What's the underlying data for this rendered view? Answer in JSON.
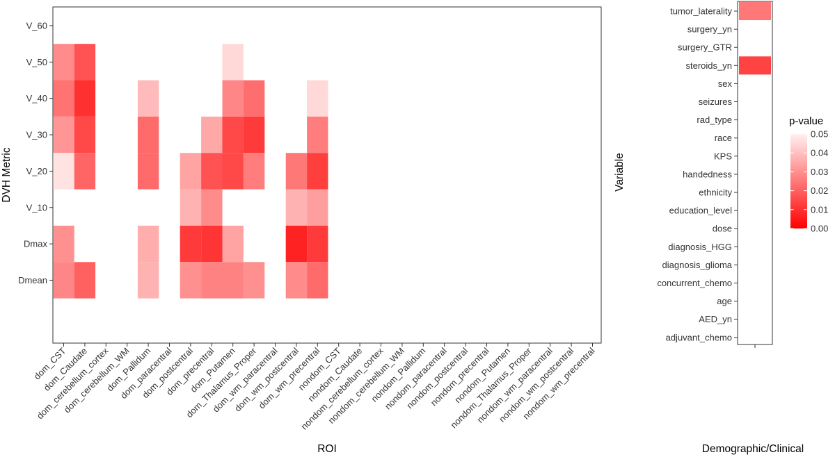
{
  "chart_data": [
    {
      "type": "heatmap",
      "xlabel": "ROI",
      "ylabel": "DVH Metric",
      "x_categories": [
        "dom_CST",
        "dom_Caudate",
        "dom_cerebellum_cortex",
        "dom_cerebellum_WM",
        "dom_Pallidum",
        "dom_paracentral",
        "dom_postcentral",
        "dom_precentral",
        "dom_Putamen",
        "dom_Thalamus_Proper",
        "dom_wm_paracentral",
        "dom_wm_postcentral",
        "dom_wm_precentral",
        "nondom_CST",
        "nondom_Caudate",
        "nondom_cerebellum_cortex",
        "nondom_cerebellum_WM",
        "nondom_Pallidum",
        "nondom_paracentral",
        "nondom_postcentral",
        "nondom_precentral",
        "nondom_Putamen",
        "nondom_Thalamus_Proper",
        "nondom_wm_paracentral",
        "nondom_wm_postcentral",
        "nondom_wm_precentral"
      ],
      "y_categories": [
        "V_60",
        "V_50",
        "V_40",
        "V_30",
        "V_20",
        "V_10",
        "Dmax",
        "Dmean"
      ],
      "cells": [
        {
          "x": "dom_CST",
          "y": "V_50",
          "p": 0.029
        },
        {
          "x": "dom_CST",
          "y": "V_40",
          "p": 0.024
        },
        {
          "x": "dom_CST",
          "y": "V_30",
          "p": 0.031
        },
        {
          "x": "dom_CST",
          "y": "V_20",
          "p": 0.047
        },
        {
          "x": "dom_CST",
          "y": "Dmax",
          "p": 0.03
        },
        {
          "x": "dom_CST",
          "y": "Dmean",
          "p": 0.028
        },
        {
          "x": "dom_Caudate",
          "y": "V_50",
          "p": 0.017
        },
        {
          "x": "dom_Caudate",
          "y": "V_40",
          "p": 0.01
        },
        {
          "x": "dom_Caudate",
          "y": "V_30",
          "p": 0.015
        },
        {
          "x": "dom_Caudate",
          "y": "V_20",
          "p": 0.021
        },
        {
          "x": "dom_Caudate",
          "y": "Dmean",
          "p": 0.02
        },
        {
          "x": "dom_Pallidum",
          "y": "V_40",
          "p": 0.039
        },
        {
          "x": "dom_Pallidum",
          "y": "V_30",
          "p": 0.022
        },
        {
          "x": "dom_Pallidum",
          "y": "V_20",
          "p": 0.022
        },
        {
          "x": "dom_Pallidum",
          "y": "Dmax",
          "p": 0.036
        },
        {
          "x": "dom_Pallidum",
          "y": "Dmean",
          "p": 0.037
        },
        {
          "x": "dom_postcentral",
          "y": "V_20",
          "p": 0.034
        },
        {
          "x": "dom_postcentral",
          "y": "V_10",
          "p": 0.037
        },
        {
          "x": "dom_postcentral",
          "y": "Dmax",
          "p": 0.012
        },
        {
          "x": "dom_postcentral",
          "y": "Dmean",
          "p": 0.03
        },
        {
          "x": "dom_precentral",
          "y": "V_30",
          "p": 0.035
        },
        {
          "x": "dom_precentral",
          "y": "V_20",
          "p": 0.017
        },
        {
          "x": "dom_precentral",
          "y": "V_10",
          "p": 0.029
        },
        {
          "x": "dom_precentral",
          "y": "Dmax",
          "p": 0.011
        },
        {
          "x": "dom_precentral",
          "y": "Dmean",
          "p": 0.027
        },
        {
          "x": "dom_Putamen",
          "y": "V_50",
          "p": 0.045
        },
        {
          "x": "dom_Putamen",
          "y": "V_40",
          "p": 0.028
        },
        {
          "x": "dom_Putamen",
          "y": "V_30",
          "p": 0.015
        },
        {
          "x": "dom_Putamen",
          "y": "V_20",
          "p": 0.015
        },
        {
          "x": "dom_Putamen",
          "y": "Dmax",
          "p": 0.034
        },
        {
          "x": "dom_Putamen",
          "y": "Dmean",
          "p": 0.027
        },
        {
          "x": "dom_Thalamus_Proper",
          "y": "V_40",
          "p": 0.023
        },
        {
          "x": "dom_Thalamus_Proper",
          "y": "V_30",
          "p": 0.012
        },
        {
          "x": "dom_Thalamus_Proper",
          "y": "V_20",
          "p": 0.026
        },
        {
          "x": "dom_Thalamus_Proper",
          "y": "Dmean",
          "p": 0.03
        },
        {
          "x": "dom_wm_postcentral",
          "y": "V_20",
          "p": 0.025
        },
        {
          "x": "dom_wm_postcentral",
          "y": "V_10",
          "p": 0.037
        },
        {
          "x": "dom_wm_postcentral",
          "y": "Dmax",
          "p": 0.007
        },
        {
          "x": "dom_wm_postcentral",
          "y": "Dmean",
          "p": 0.029
        },
        {
          "x": "dom_wm_precentral",
          "y": "V_40",
          "p": 0.045
        },
        {
          "x": "dom_wm_precentral",
          "y": "V_30",
          "p": 0.026
        },
        {
          "x": "dom_wm_precentral",
          "y": "V_20",
          "p": 0.013
        },
        {
          "x": "dom_wm_precentral",
          "y": "V_10",
          "p": 0.033
        },
        {
          "x": "dom_wm_precentral",
          "y": "Dmax",
          "p": 0.012
        },
        {
          "x": "dom_wm_precentral",
          "y": "Dmean",
          "p": 0.022
        }
      ]
    },
    {
      "type": "heatmap",
      "xlabel": "Demographic/Clinical",
      "ylabel": "Variable",
      "x_categories": [
        ""
      ],
      "y_categories": [
        "tumor_laterality",
        "surgery_yn",
        "surgery_GTR",
        "steroids_yn",
        "sex",
        "seizures",
        "rad_type",
        "race",
        "KPS",
        "handedness",
        "ethnicity",
        "education_level",
        "dose",
        "diagnosis_HGG",
        "diagnosis_glioma",
        "concurrent_chemo",
        "age",
        "AED_yn",
        "adjuvant_chemo"
      ],
      "cells": [
        {
          "x": "",
          "y": "tumor_laterality",
          "p": 0.025
        },
        {
          "x": "",
          "y": "steroids_yn",
          "p": 0.014
        }
      ]
    }
  ],
  "legend": {
    "title": "p-value",
    "ticks": [
      "0.05",
      "0.04",
      "0.03",
      "0.02",
      "0.01",
      "0.00"
    ],
    "range": [
      0,
      0.05
    ],
    "color_low": "#ff0000",
    "color_high": "#fff0f0"
  }
}
